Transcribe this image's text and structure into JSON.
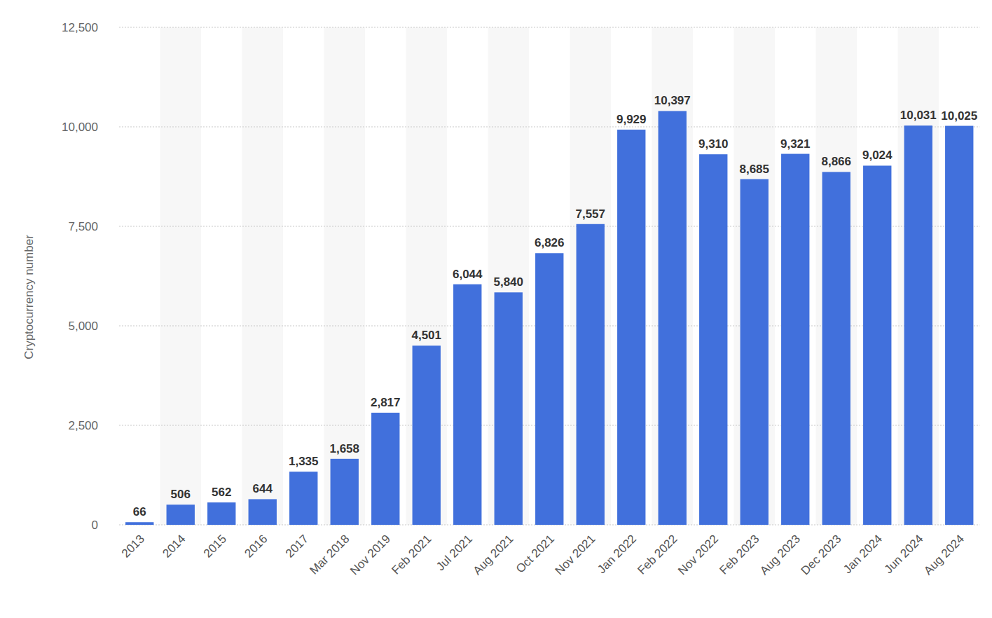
{
  "chart_data": {
    "type": "bar",
    "y_label": "Cryptocurrency number",
    "categories": [
      "2013",
      "2014",
      "2015",
      "2016",
      "2017",
      "Mar 2018",
      "Nov 2019",
      "Feb 2021",
      "Jul 2021",
      "Aug 2021",
      "Oct 2021",
      "Nov 2021",
      "Jan 2022",
      "Feb 2022",
      "Nov 2022",
      "Feb 2023",
      "Aug 2023",
      "Dec 2023",
      "Jan 2024",
      "Jun 2024",
      "Aug 2024"
    ],
    "values": [
      66,
      506,
      562,
      644,
      1335,
      1658,
      2817,
      4501,
      6044,
      5840,
      6826,
      7557,
      9929,
      10397,
      9310,
      8685,
      9321,
      8866,
      9024,
      10031,
      10025
    ],
    "value_labels": [
      "66",
      "506",
      "562",
      "644",
      "1,335",
      "1,658",
      "2,817",
      "4,501",
      "6,044",
      "5,840",
      "6,826",
      "7,557",
      "9,929",
      "10,397",
      "9,310",
      "8,685",
      "9,321",
      "8,866",
      "9,024",
      "10,031",
      "10,025"
    ],
    "color": "#4170dc",
    "ylim": [
      0,
      12500
    ],
    "yticks": [
      0,
      {
        "value": 2500,
        "label": "2,500"
      },
      {
        "value": 5000,
        "label": "5,000"
      },
      {
        "value": 7500,
        "label": "7,500"
      },
      {
        "value": 10000,
        "label": "10,000"
      },
      {
        "value": 12500,
        "label": "12,500"
      }
    ],
    "grid": true,
    "data_labels": true
  }
}
